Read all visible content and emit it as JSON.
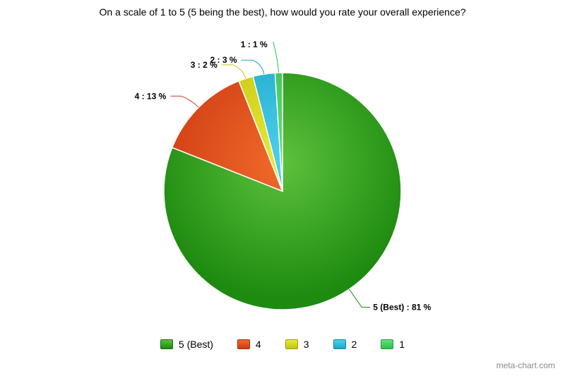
{
  "chart_data": {
    "type": "pie",
    "title": "On a scale of 1 to 5 (5 being the best), how would you rate your overall experience?",
    "slices": [
      {
        "label": "5 (Best)",
        "value": 81,
        "display": "5 (Best) : 81 %",
        "color": "#1e8a10",
        "highlight": "#5cc23c",
        "stroke": "#1a6b0d"
      },
      {
        "label": "4",
        "value": 13,
        "display": "4 : 13 %",
        "color": "#cf3a12",
        "highlight": "#f06a2a",
        "stroke": "#a82c0a"
      },
      {
        "label": "3",
        "value": 2,
        "display": "3 : 2 %",
        "color": "#c2c40c",
        "highlight": "#e8ea3a",
        "stroke": "#9a9c08"
      },
      {
        "label": "2",
        "value": 3,
        "display": "2 : 3 %",
        "color": "#1aa6c8",
        "highlight": "#4fd0ec",
        "stroke": "#1285a3"
      },
      {
        "label": "1",
        "value": 1,
        "display": "1 : 1 %",
        "color": "#2fbf4a",
        "highlight": "#66e07c",
        "stroke": "#229a39"
      }
    ],
    "legend_position": "bottom"
  },
  "watermark": "meta-chart.com"
}
